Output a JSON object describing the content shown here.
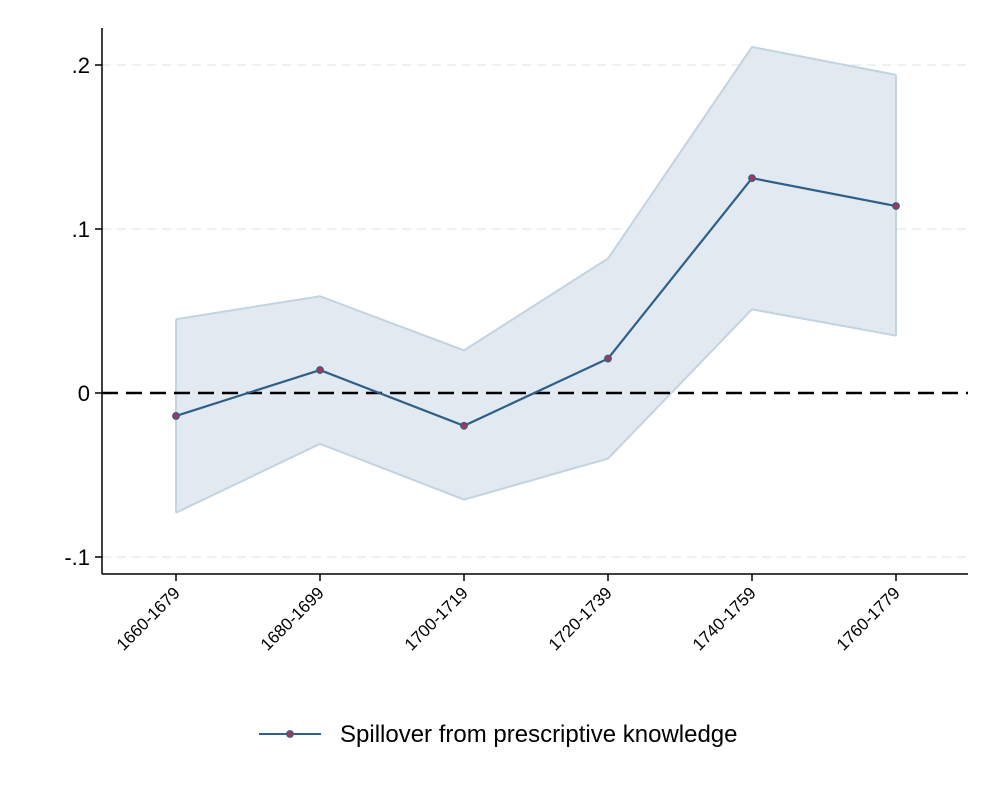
{
  "chart_data": {
    "type": "line",
    "title": "",
    "xlabel": "",
    "ylabel": "",
    "categories": [
      "1660-1679",
      "1680-1699",
      "1700-1719",
      "1720-1739",
      "1740-1759",
      "1760-1779"
    ],
    "series": [
      {
        "name": "Spillover from prescriptive knowledge",
        "values": [
          -0.014,
          0.014,
          -0.02,
          0.021,
          0.131,
          0.114
        ],
        "ci_lower": [
          -0.073,
          -0.031,
          -0.065,
          -0.04,
          0.051,
          0.035
        ],
        "ci_upper": [
          0.045,
          0.059,
          0.026,
          0.082,
          0.211,
          0.194
        ],
        "color": "#2d5f8a",
        "marker_color": "#9b3b5a"
      }
    ],
    "yticks": [
      {
        "value": -0.1,
        "label": "-.1"
      },
      {
        "value": 0,
        "label": "0"
      },
      {
        "value": 0.1,
        "label": ".1"
      },
      {
        "value": 0.2,
        "label": ".2"
      }
    ],
    "ylim": [
      -0.11,
      0.222
    ],
    "reference_line": 0,
    "grid": true,
    "band_color": "#e2e9f0",
    "band_edge_color": "#c3d3e0",
    "legend": {
      "position": "bottom",
      "entries": [
        "Spillover from prescriptive knowledge"
      ]
    }
  }
}
